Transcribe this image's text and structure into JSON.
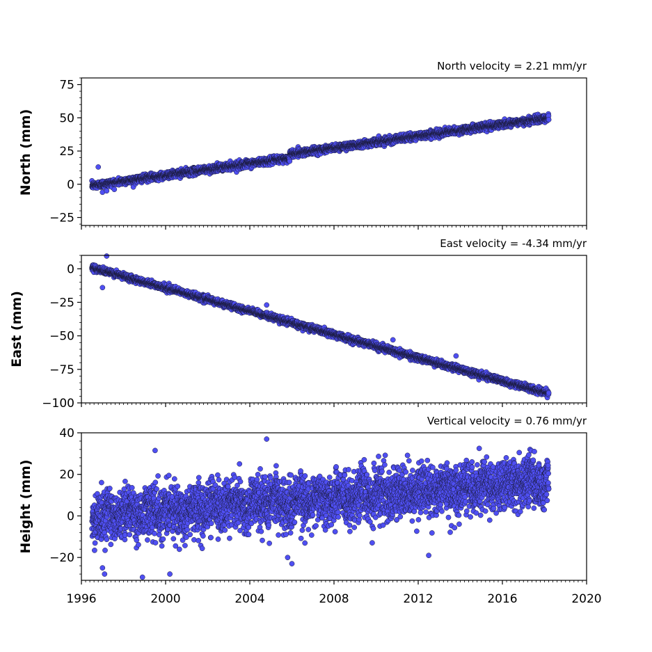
{
  "colors": {
    "point_fill": "#4f4ff2",
    "point_edge": "#1a1a3a",
    "axis": "#000000",
    "background": "#ffffff"
  },
  "chart_data": [
    {
      "type": "scatter",
      "annotation": "North velocity = 2.21 mm/yr",
      "ylabel": "North (mm)",
      "xlim": [
        1996,
        2020
      ],
      "ylim": [
        -31,
        80
      ],
      "yticks": [
        -25,
        0,
        25,
        50,
        75
      ],
      "ytick_labels": [
        "−25",
        "0",
        "25",
        "50",
        "75"
      ],
      "xtick_labels": [],
      "series": [
        {
          "x_start": 1996.5,
          "x_end": 2018.2,
          "velocity_mm_per_yr": 2.21,
          "offset_mm": -1.0,
          "noise_sd_mm": 1.3,
          "steps": [
            {
              "at": 2005.9,
              "size_mm": 3.0
            }
          ],
          "outliers": [
            [
              1996.8,
              13.0
            ],
            [
              1997.0,
              -6.0
            ],
            [
              1997.2,
              -5.0
            ]
          ]
        }
      ]
    },
    {
      "type": "scatter",
      "annotation": "East velocity = -4.34 mm/yr",
      "ylabel": "East (mm)",
      "xlim": [
        1996,
        2020
      ],
      "ylim": [
        -100,
        10
      ],
      "yticks": [
        -100,
        -75,
        -50,
        -25,
        0
      ],
      "ytick_labels": [
        "−100",
        "−75",
        "−50",
        "−25",
        "0"
      ],
      "xtick_labels": [],
      "series": [
        {
          "x_start": 1996.5,
          "x_end": 2018.2,
          "velocity_mm_per_yr": -4.34,
          "offset_mm": 1.0,
          "noise_sd_mm": 1.1,
          "steps": [],
          "outliers": [
            [
              1997.0,
              -14.0
            ],
            [
              1997.2,
              9.5
            ],
            [
              2004.8,
              -27.0
            ],
            [
              2010.8,
              -53.0
            ],
            [
              2013.8,
              -65.0
            ]
          ]
        }
      ]
    },
    {
      "type": "scatter",
      "annotation": "Vertical velocity = 0.76 mm/yr",
      "ylabel": "Height (mm)",
      "xlim": [
        1996,
        2020
      ],
      "ylim": [
        -31,
        40
      ],
      "yticks": [
        -20,
        0,
        20,
        40
      ],
      "ytick_labels": [
        "−20",
        "0",
        "20",
        "40"
      ],
      "xticks": [
        1996,
        2000,
        2004,
        2008,
        2012,
        2016,
        2020
      ],
      "xtick_labels": [
        "1996",
        "2000",
        "2004",
        "2008",
        "2012",
        "2016",
        "2020"
      ],
      "series": [
        {
          "x_start": 1996.5,
          "x_end": 2018.2,
          "velocity_mm_per_yr": 0.76,
          "offset_mm": 0.0,
          "noise_sd_mm": 6.0,
          "steps": [],
          "outliers": [
            [
              2004.8,
              37.0
            ],
            [
              1999.5,
              31.5
            ],
            [
              2014.9,
              32.5
            ],
            [
              2016.8,
              30.5
            ],
            [
              1997.0,
              -25.0
            ],
            [
              1997.1,
              -28.0
            ],
            [
              1998.9,
              -29.5
            ],
            [
              2000.2,
              -28.0
            ],
            [
              2005.8,
              -20.0
            ],
            [
              2006.0,
              -23.0
            ],
            [
              2012.5,
              -19.0
            ]
          ]
        }
      ]
    }
  ]
}
